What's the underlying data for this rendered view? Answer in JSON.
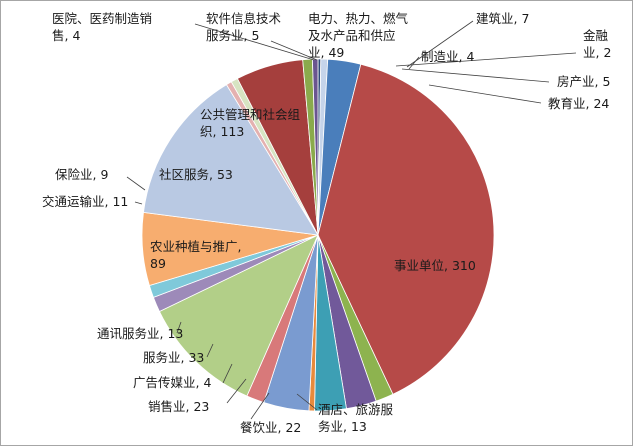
{
  "chart_data": {
    "type": "pie",
    "title": "",
    "start_angle_deg": 0,
    "direction": "clockwise",
    "legend": "none",
    "slices": [
      {
        "label_lines": [
          "金融",
          "业, 2"
        ],
        "category": "金融业",
        "value": 2,
        "color": "#2e4a78"
      },
      {
        "label_lines": [
          "房产业, 5"
        ],
        "category": "房产业",
        "value": 5,
        "color": "#c5d4ea"
      },
      {
        "label_lines": [
          "教育业, 24"
        ],
        "category": "教育业",
        "value": 24,
        "color": "#4a7ebb"
      },
      {
        "label_lines": [
          "事业单位, 310"
        ],
        "category": "事业单位",
        "value": 310,
        "color": "#b64a48"
      },
      {
        "label_lines": [
          "酒店、旅游服",
          "务业, 13"
        ],
        "category": "酒店、旅游服务业",
        "value": 13,
        "color": "#8db34f"
      },
      {
        "label_lines": [
          "餐饮业, 22"
        ],
        "category": "餐饮业",
        "value": 22,
        "color": "#71599a"
      },
      {
        "label_lines": [
          "销售业, 23"
        ],
        "category": "销售业",
        "value": 23,
        "color": "#3d9fb4"
      },
      {
        "label_lines": [
          "广告传媒业, 4"
        ],
        "category": "广告传媒业",
        "value": 4,
        "color": "#e88a3c"
      },
      {
        "label_lines": [
          "服务业, 33"
        ],
        "category": "服务业",
        "value": 33,
        "color": "#7a9bd0"
      },
      {
        "label_lines": [
          "通讯服务业, 13"
        ],
        "category": "通讯服务业",
        "value": 13,
        "color": "#d8797a"
      },
      {
        "label_lines": [
          "农业种植与推广,",
          "89"
        ],
        "category": "农业种植与推广",
        "value": 89,
        "color": "#b2cf88"
      },
      {
        "label_lines": [
          "交通运输业, 11"
        ],
        "category": "交通运输业",
        "value": 11,
        "color": "#9d8ab9"
      },
      {
        "label_lines": [
          "保险业, 9"
        ],
        "category": "保险业",
        "value": 9,
        "color": "#7fc9da"
      },
      {
        "label_lines": [
          "社区服务, 53"
        ],
        "category": "社区服务",
        "value": 53,
        "color": "#f7ad6f"
      },
      {
        "label_lines": [
          "公共管理和社会组",
          "织, 113"
        ],
        "category": "公共管理和社会组织",
        "value": 113,
        "color": "#b9c9e3"
      },
      {
        "label_lines": [
          "医院、医药制造销",
          "售, 4"
        ],
        "category": "医院、医药制造销售",
        "value": 4,
        "color": "#e4b1b0"
      },
      {
        "label_lines": [
          "软件信息技术",
          "服务业, 5"
        ],
        "category": "软件信息技术服务业",
        "value": 5,
        "color": "#d7e4c2"
      },
      {
        "label_lines": [
          "电力、热力、燃气",
          "及水产品和供应",
          "业, 49"
        ],
        "category": "电力、热力、燃气及水产品和供应业",
        "value": 49,
        "color": "#a53f3d"
      },
      {
        "label_lines": [
          "建筑业, 7"
        ],
        "category": "建筑业",
        "value": 7,
        "color": "#8aaa4c"
      },
      {
        "label_lines": [
          "制造业, 4"
        ],
        "category": "制造业",
        "value": 4,
        "color": "#6a5590"
      }
    ]
  }
}
